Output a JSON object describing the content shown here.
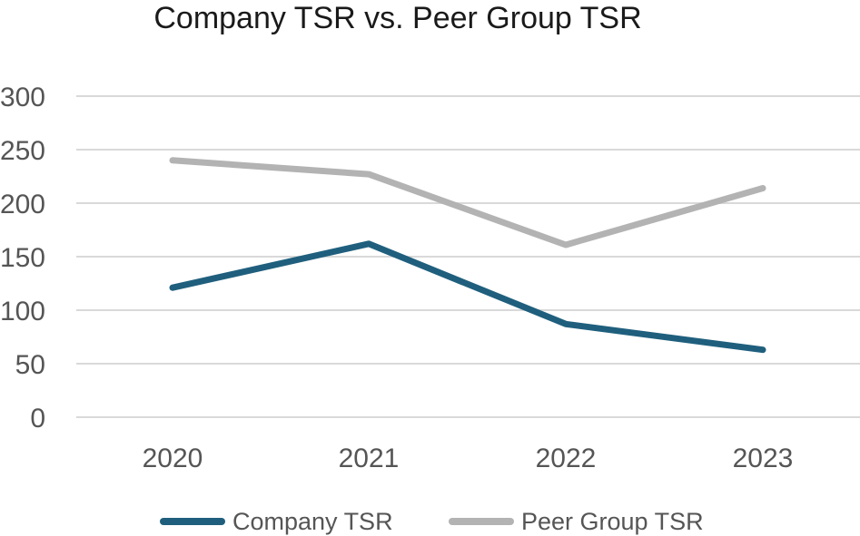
{
  "chart_data": {
    "type": "line",
    "title": "Company TSR vs. Peer Group TSR",
    "categories": [
      "2020",
      "2021",
      "2022",
      "2023"
    ],
    "series": [
      {
        "name": "Company TSR",
        "values": [
          121,
          162,
          87,
          63
        ],
        "color": "#1f5f7d"
      },
      {
        "name": "Peer Group TSR",
        "values": [
          240,
          227,
          161,
          214
        ],
        "color": "#b3b3b3"
      }
    ],
    "yticks": [
      "0",
      "50",
      "100",
      "150",
      "200",
      "250",
      "300"
    ],
    "ylim": [
      0,
      300
    ],
    "xlabel": "",
    "ylabel": "",
    "grid": true,
    "legend": "bottom"
  }
}
